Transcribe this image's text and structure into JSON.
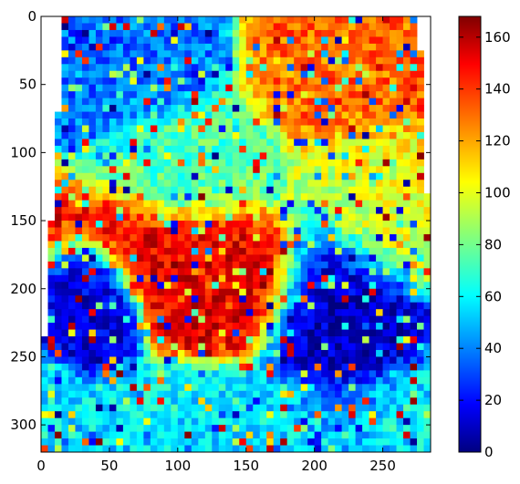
{
  "chart_data": {
    "type": "heatmap",
    "colormap": "jet",
    "x_ticks": [
      0,
      50,
      100,
      150,
      200,
      250
    ],
    "y_ticks": [
      0,
      50,
      100,
      150,
      200,
      250,
      300
    ],
    "xlim": [
      0,
      285
    ],
    "ylim": [
      320,
      0
    ],
    "y_axis_inverted": true,
    "colorbar": {
      "ticks": [
        0,
        20,
        40,
        60,
        80,
        100,
        120,
        140,
        160
      ],
      "range": [
        0,
        168
      ]
    },
    "regions": [
      {
        "x": [
          40,
          130
        ],
        "y": [
          0,
          70
        ],
        "value": 40
      },
      {
        "x": [
          80,
          170
        ],
        "y": [
          60,
          150
        ],
        "value": 75
      },
      {
        "x": [
          160,
          280
        ],
        "y": [
          0,
          90
        ],
        "value": 130
      },
      {
        "x": [
          190,
          280
        ],
        "y": [
          80,
          180
        ],
        "value": 100
      },
      {
        "x": [
          70,
          190
        ],
        "y": [
          140,
          240
        ],
        "value": 150
      },
      {
        "x": [
          170,
          250
        ],
        "y": [
          150,
          300
        ],
        "value": 10
      },
      {
        "x": [
          20,
          70
        ],
        "y": [
          190,
          260
        ],
        "value": 15
      },
      {
        "x": [
          0,
          285
        ],
        "y": [
          260,
          320
        ],
        "value": 60
      }
    ],
    "grid": false,
    "colors": {
      "jet_stops": [
        "#000080",
        "#0000ff",
        "#00ffff",
        "#ffff00",
        "#ff0000",
        "#800000"
      ]
    }
  }
}
